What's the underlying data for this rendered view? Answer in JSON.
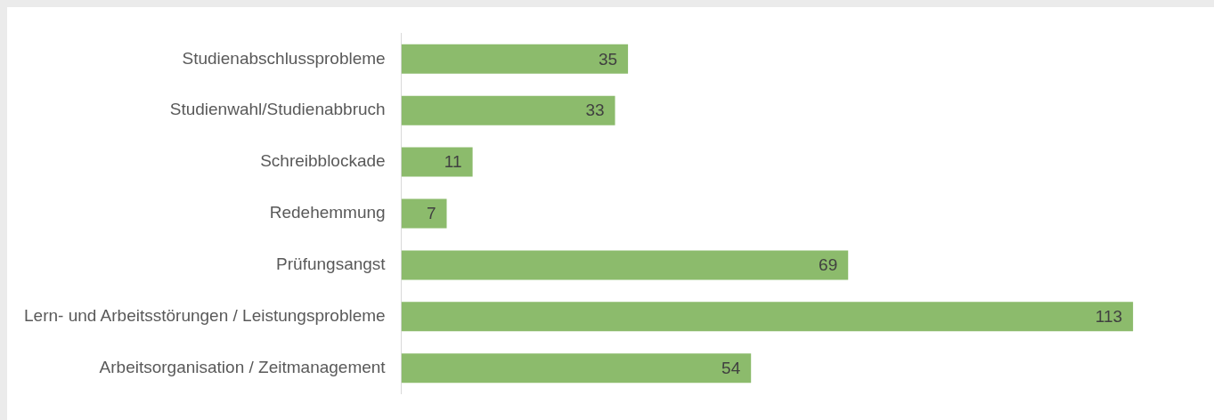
{
  "chart_data": {
    "type": "bar",
    "orientation": "horizontal",
    "categories": [
      "Studienabschlussprobleme",
      "Studienwahl/Studienabbruch",
      "Schreibblockade",
      "Redehemmung",
      "Prüfungsangst",
      "Lern- und Arbeitsstörungen / Leistungsprobleme",
      "Arbeitsorganisation / Zeitmanagement"
    ],
    "values": [
      35,
      33,
      11,
      7,
      69,
      113,
      54
    ],
    "color": "#8cbb6c",
    "data_labels": true,
    "grid": false,
    "legend": false
  }
}
